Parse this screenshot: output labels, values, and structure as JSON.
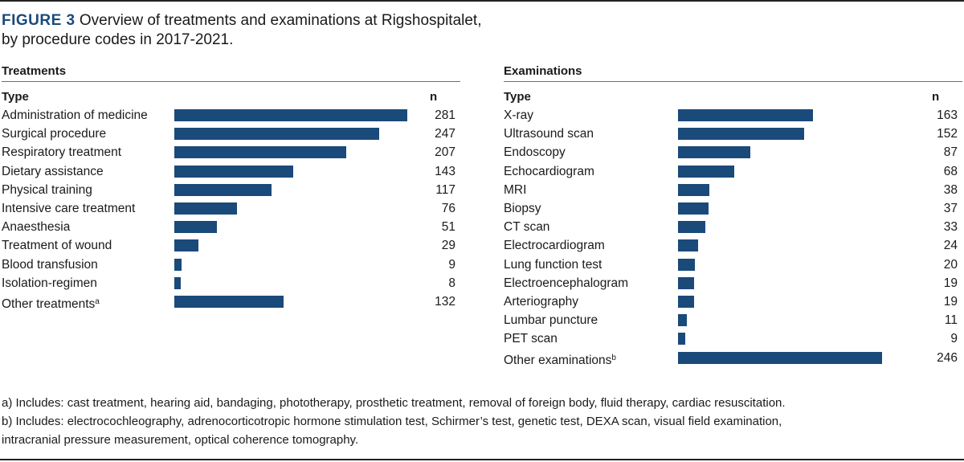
{
  "figure": {
    "number": "FIGURE 3",
    "title_line1": "Overview of treatments and examinations at Rigshospitalet,",
    "title_line2": "by procedure codes in 2017-2021."
  },
  "chart_data": [
    {
      "type": "bar",
      "orientation": "horizontal",
      "title": "Treatments",
      "column_headers": {
        "type": "Type",
        "n": "n"
      },
      "categories": [
        "Administration of medicine",
        "Surgical procedure",
        "Respiratory treatment",
        "Dietary assistance",
        "Physical training",
        "Intensive care treatment",
        "Anaesthesia",
        "Treatment of wound",
        "Blood transfusion",
        "Isolation-regimen",
        "Other treatments"
      ],
      "footnote_marks": [
        "",
        "",
        "",
        "",
        "",
        "",
        "",
        "",
        "",
        "",
        "a"
      ],
      "values": [
        281,
        247,
        207,
        143,
        117,
        76,
        51,
        29,
        9,
        8,
        132
      ],
      "grid": false,
      "legend": "none",
      "bar_color": "#1a4a7a"
    },
    {
      "type": "bar",
      "orientation": "horizontal",
      "title": "Examinations",
      "column_headers": {
        "type": "Type",
        "n": "n"
      },
      "categories": [
        "X-ray",
        "Ultrasound scan",
        "Endoscopy",
        "Echocardiogram",
        "MRI",
        "Biopsy",
        "CT scan",
        "Electrocardiogram",
        "Lung function test",
        "Electroencephalogram",
        "Arteriography",
        "Lumbar puncture",
        "PET scan",
        "Other examinations"
      ],
      "footnote_marks": [
        "",
        "",
        "",
        "",
        "",
        "",
        "",
        "",
        "",
        "",
        "",
        "",
        "",
        "b"
      ],
      "values": [
        163,
        152,
        87,
        68,
        38,
        37,
        33,
        24,
        20,
        19,
        19,
        11,
        9,
        246
      ],
      "grid": false,
      "legend": "none",
      "bar_color": "#1a4a7a"
    }
  ],
  "footnotes": {
    "a": "a) Includes: cast treatment, hearing aid, bandaging, phototherapy, prosthetic treatment, removal of foreign body, fluid therapy, cardiac resuscitation.",
    "b_line1": "b) Includes: electrocochleography, adrenocorticotropic hormone stimulation test, Schirmer’s test, genetic test, DEXA scan, visual field examination,",
    "b_line2": "intracranial pressure measurement, optical coherence tomography."
  }
}
